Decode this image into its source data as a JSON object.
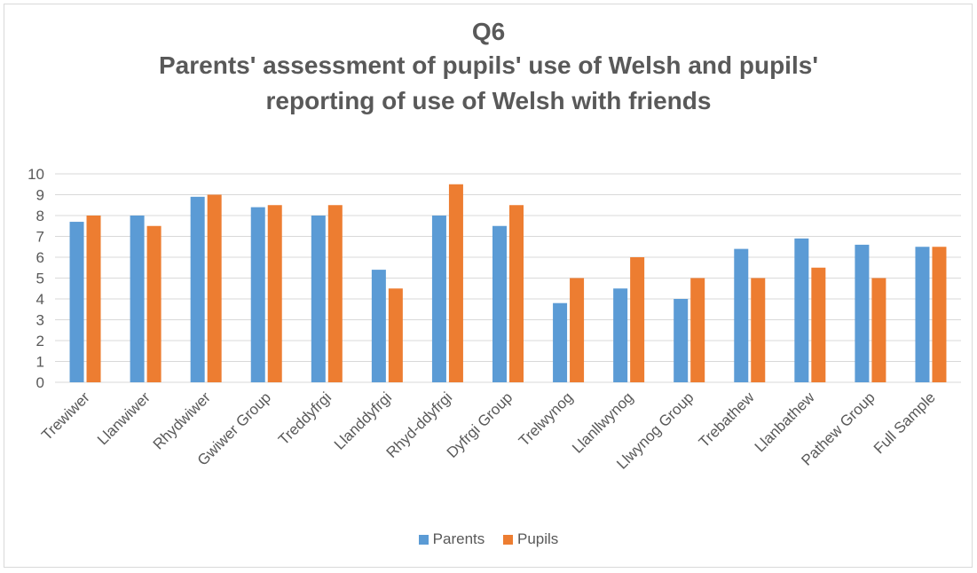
{
  "chart_data": {
    "type": "bar",
    "title_lines": [
      "Q6",
      "Parents' assessment of pupils' use of Welsh and pupils'",
      "reporting of use of Welsh with friends"
    ],
    "categories": [
      "Trewiwer",
      "Llanwiwer",
      "Rhydwiwer",
      "Gwiwer Group",
      "Treddyfrgi",
      "Llanddyfrgi",
      "Rhyd-ddyfrgi",
      "Dyfrgi Group",
      "Trelwynog",
      "Llanllwynog",
      "Llwynog Group",
      "Trebathew",
      "Llanbathew",
      "Pathew Group",
      "Full Sample"
    ],
    "series": [
      {
        "name": "Parents",
        "color": "#5b9bd5",
        "values": [
          7.7,
          8.0,
          8.9,
          8.4,
          8.0,
          5.4,
          8.0,
          7.5,
          3.8,
          4.5,
          4.0,
          6.4,
          6.9,
          6.6,
          6.5
        ]
      },
      {
        "name": "Pupils",
        "color": "#ed7d31",
        "values": [
          8.0,
          7.5,
          9.0,
          8.5,
          8.5,
          4.5,
          9.5,
          8.5,
          5.0,
          6.0,
          5.0,
          5.0,
          5.5,
          5.0,
          6.5
        ]
      }
    ],
    "ylim": [
      0,
      10
    ],
    "yticks": [
      0,
      1,
      2,
      3,
      4,
      5,
      6,
      7,
      8,
      9,
      10
    ],
    "grid": true,
    "legend_position": "bottom"
  }
}
